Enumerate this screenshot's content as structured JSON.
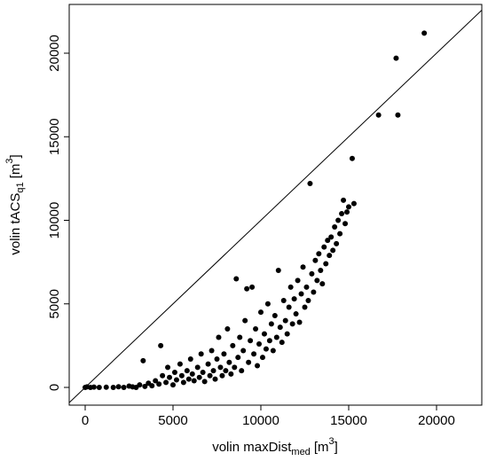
{
  "chart_data": {
    "type": "scatter",
    "x_label": {
      "text": "volin maxDist",
      "subscript": "med",
      "unit": "[m",
      "superscript": "3",
      "close": "]"
    },
    "y_label": {
      "text": "volin tACS",
      "subscript": "q1",
      "unit": "[m",
      "superscript": "3",
      "close": "]"
    },
    "color": "#000000",
    "identity_line": true,
    "xlim": [
      -909,
      22576
    ],
    "ylim": [
      -1061,
      22918
    ],
    "xticks": [
      0,
      5000,
      10000,
      15000,
      20000
    ],
    "yticks": [
      0,
      5000,
      10000,
      15000,
      20000
    ],
    "x": [
      0,
      100,
      300,
      500,
      800,
      1200,
      1600,
      1900,
      2200,
      2500,
      2700,
      2900,
      3100,
      3300,
      3400,
      3600,
      3800,
      4000,
      4200,
      4300,
      4400,
      4600,
      4700,
      4800,
      5000,
      5100,
      5200,
      5400,
      5500,
      5600,
      5800,
      5900,
      6000,
      6100,
      6200,
      6400,
      6500,
      6600,
      6700,
      6800,
      7000,
      7100,
      7200,
      7300,
      7400,
      7500,
      7600,
      7700,
      7800,
      7900,
      8000,
      8100,
      8200,
      8300,
      8400,
      8500,
      8600,
      8700,
      8800,
      8900,
      9000,
      9100,
      9200,
      9300,
      9400,
      9500,
      9600,
      9700,
      9800,
      9900,
      10000,
      10100,
      10200,
      10300,
      10400,
      10500,
      10600,
      10700,
      10800,
      10900,
      11000,
      11100,
      11200,
      11300,
      11400,
      11500,
      11600,
      11700,
      11800,
      11900,
      12000,
      12100,
      12200,
      12300,
      12400,
      12500,
      12600,
      12700,
      12800,
      12900,
      13000,
      13100,
      13200,
      13300,
      13400,
      13500,
      13600,
      13700,
      13800,
      13900,
      14000,
      14100,
      14200,
      14300,
      14400,
      14500,
      14600,
      14700,
      14800,
      14900,
      15000,
      15200,
      15300,
      16700,
      17700,
      17800,
      19300
    ],
    "y": [
      0,
      30,
      0,
      20,
      0,
      10,
      0,
      40,
      0,
      80,
      30,
      0,
      150,
      1600,
      60,
      250,
      100,
      400,
      200,
      2500,
      700,
      300,
      1200,
      600,
      150,
      900,
      450,
      1400,
      700,
      300,
      1000,
      500,
      1700,
      800,
      400,
      1200,
      600,
      2000,
      900,
      350,
      1400,
      700,
      2200,
      1000,
      500,
      1700,
      3000,
      1200,
      700,
      2000,
      1000,
      3500,
      1500,
      800,
      2500,
      1200,
      6500,
      1800,
      3000,
      1000,
      2200,
      4000,
      5900,
      1500,
      2800,
      6000,
      2000,
      3500,
      1300,
      2600,
      4500,
      1800,
      3200,
      2300,
      5000,
      2800,
      3800,
      2200,
      4300,
      3000,
      7000,
      3600,
      2700,
      5200,
      4000,
      3200,
      4800,
      6000,
      3800,
      5300,
      4400,
      6400,
      3900,
      5600,
      7200,
      4800,
      6000,
      5200,
      12200,
      6800,
      5700,
      7600,
      6400,
      8000,
      7000,
      6200,
      8400,
      7400,
      8800,
      7900,
      9000,
      8200,
      9600,
      8600,
      10000,
      9200,
      10400,
      11200,
      9800,
      10500,
      10800,
      13700,
      11000,
      16300,
      19700,
      16300,
      21200
    ]
  }
}
